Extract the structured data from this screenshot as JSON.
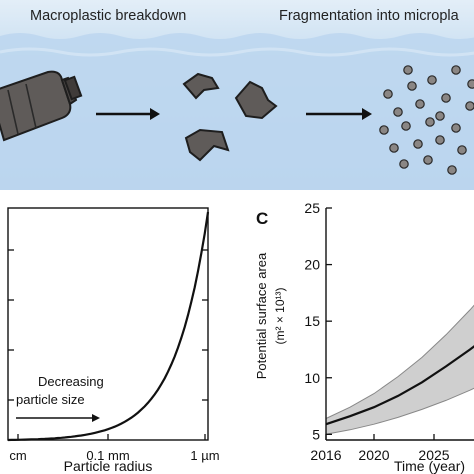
{
  "panel_a": {
    "caption_left": "Macroplastic breakdown",
    "caption_right": "Fragmentation into micropla",
    "colors": {
      "water": "#b8d4ee",
      "plastic": "#5f5b59",
      "particle": "#8a8684"
    }
  },
  "chart_data": [
    {
      "type": "line",
      "panel": "B",
      "xlabel": "Particle radius",
      "ylabel": "",
      "x_tick_labels": [
        "cm",
        "0.1 mm",
        "1 µm"
      ],
      "x_scale": "log (decreasing size)",
      "annotation": {
        "line1": "Decreasing",
        "line2": "particle size"
      },
      "series": [
        {
          "x": [
            0.0,
            0.25,
            0.5,
            0.75,
            0.85,
            0.92,
            1.0
          ],
          "y": [
            0.0,
            0.002,
            0.02,
            0.18,
            0.42,
            0.68,
            1.0
          ]
        }
      ]
    },
    {
      "type": "line",
      "panel": "C",
      "panel_label": "C",
      "xlabel": "Time (year)",
      "ylabel_line1": "Potential surface area",
      "ylabel_line2": "(m² × 10¹³)",
      "xlim": [
        2016,
        2029
      ],
      "ylim": [
        4.5,
        25
      ],
      "x_ticks": [
        2016,
        2020,
        2025
      ],
      "y_ticks": [
        5,
        10,
        15,
        20,
        25
      ],
      "series": [
        {
          "name": "",
          "x": [
            2016,
            2018,
            2020,
            2022,
            2024,
            2026,
            2028,
            2029
          ],
          "y": [
            5.9,
            6.6,
            7.4,
            8.4,
            9.6,
            11.0,
            12.5,
            13.3
          ]
        }
      ],
      "band": {
        "x": [
          2016,
          2018,
          2020,
          2022,
          2024,
          2026,
          2028,
          2029
        ],
        "lower": [
          5.0,
          5.4,
          5.9,
          6.5,
          7.2,
          8.0,
          8.9,
          9.4
        ],
        "upper": [
          6.4,
          7.4,
          8.6,
          10.1,
          11.8,
          13.8,
          16.0,
          17.2
        ]
      }
    }
  ]
}
